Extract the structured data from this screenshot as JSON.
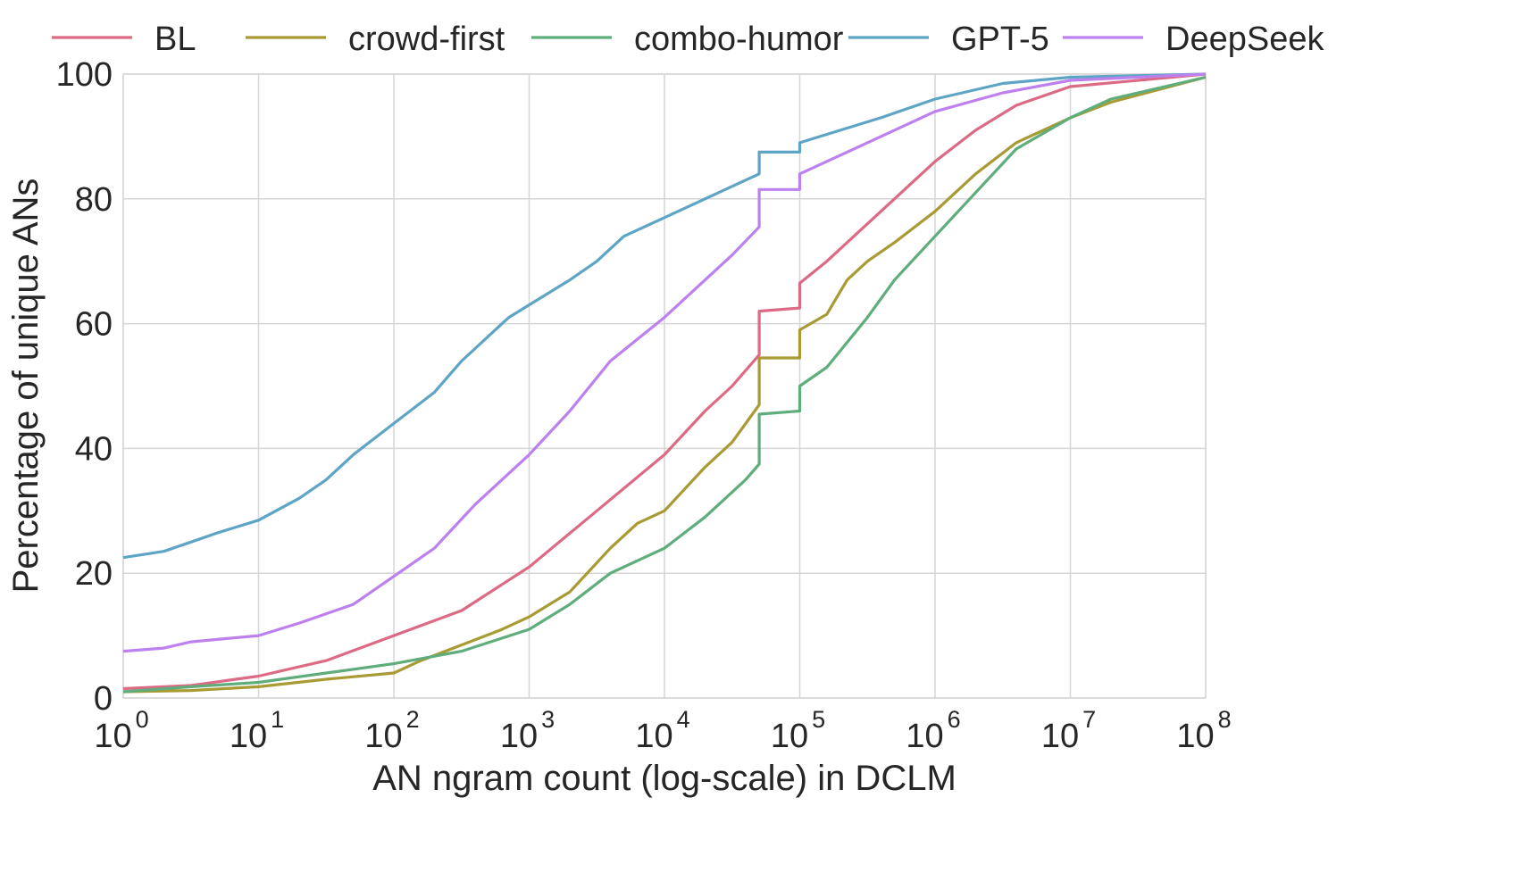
{
  "chart_data": {
    "type": "line",
    "title": "",
    "xlabel": "AN ngram count (log-scale) in DCLM",
    "ylabel": "Percentage of unique ANs",
    "xscale": "log",
    "xlim_log10": [
      0,
      8
    ],
    "ylim": [
      0,
      100
    ],
    "x_ticks": [
      {
        "base": "10",
        "exp": "0"
      },
      {
        "base": "10",
        "exp": "1"
      },
      {
        "base": "10",
        "exp": "2"
      },
      {
        "base": "10",
        "exp": "3"
      },
      {
        "base": "10",
        "exp": "4"
      },
      {
        "base": "10",
        "exp": "5"
      },
      {
        "base": "10",
        "exp": "6"
      },
      {
        "base": "10",
        "exp": "7"
      },
      {
        "base": "10",
        "exp": "8"
      }
    ],
    "y_ticks": [
      "0",
      "20",
      "40",
      "60",
      "80",
      "100"
    ],
    "grid": true,
    "legend_placement": "top, outside",
    "series": [
      {
        "name": "BL",
        "color": "#dd6a84",
        "points_log10x_y": [
          [
            0,
            1.5
          ],
          [
            0.5,
            2
          ],
          [
            1,
            3.5
          ],
          [
            1.5,
            6
          ],
          [
            2,
            10
          ],
          [
            2.5,
            14
          ],
          [
            3,
            21
          ],
          [
            3.5,
            30
          ],
          [
            4,
            39
          ],
          [
            4.3,
            46
          ],
          [
            4.5,
            50
          ],
          [
            4.7,
            55
          ],
          [
            4.7,
            62
          ],
          [
            5,
            62.5
          ],
          [
            5,
            66.5
          ],
          [
            5.2,
            70
          ],
          [
            5.4,
            74
          ],
          [
            5.6,
            78
          ],
          [
            5.8,
            82
          ],
          [
            6,
            86
          ],
          [
            6.3,
            91
          ],
          [
            6.6,
            95
          ],
          [
            7,
            98
          ],
          [
            7.5,
            99
          ],
          [
            8,
            100
          ]
        ]
      },
      {
        "name": "crowd-first",
        "color": "#a99b34",
        "points_log10x_y": [
          [
            0,
            1
          ],
          [
            0.5,
            1.2
          ],
          [
            1,
            1.8
          ],
          [
            1.5,
            3
          ],
          [
            2,
            4
          ],
          [
            2.2,
            6
          ],
          [
            2.5,
            8.5
          ],
          [
            2.8,
            11
          ],
          [
            3,
            13
          ],
          [
            3.3,
            17
          ],
          [
            3.6,
            24
          ],
          [
            3.8,
            28
          ],
          [
            4,
            30
          ],
          [
            4.3,
            37
          ],
          [
            4.5,
            41
          ],
          [
            4.7,
            47
          ],
          [
            4.7,
            54.5
          ],
          [
            5,
            54.5
          ],
          [
            5,
            59
          ],
          [
            5.2,
            61.5
          ],
          [
            5.35,
            67
          ],
          [
            5.5,
            70
          ],
          [
            5.7,
            73
          ],
          [
            6,
            78
          ],
          [
            6.3,
            84
          ],
          [
            6.6,
            89
          ],
          [
            7,
            93
          ],
          [
            7.3,
            95.5
          ],
          [
            8,
            99.5
          ]
        ]
      },
      {
        "name": "combo-humor",
        "color": "#5fad7b",
        "points_log10x_y": [
          [
            0,
            1
          ],
          [
            0.5,
            1.8
          ],
          [
            1,
            2.5
          ],
          [
            1.5,
            4
          ],
          [
            2,
            5.5
          ],
          [
            2.5,
            7.5
          ],
          [
            3,
            11
          ],
          [
            3.3,
            15
          ],
          [
            3.6,
            20
          ],
          [
            4,
            24
          ],
          [
            4.3,
            29
          ],
          [
            4.6,
            35
          ],
          [
            4.7,
            37.5
          ],
          [
            4.7,
            45.5
          ],
          [
            5,
            46
          ],
          [
            5,
            50
          ],
          [
            5.2,
            53
          ],
          [
            5.35,
            57
          ],
          [
            5.5,
            61
          ],
          [
            5.7,
            67
          ],
          [
            6,
            74
          ],
          [
            6.3,
            81
          ],
          [
            6.6,
            88
          ],
          [
            7,
            93
          ],
          [
            7.3,
            96
          ],
          [
            8,
            99.5
          ]
        ]
      },
      {
        "name": "GPT-5",
        "color": "#5ea4c4",
        "points_log10x_y": [
          [
            0,
            22.5
          ],
          [
            0.3,
            23.5
          ],
          [
            0.5,
            25
          ],
          [
            0.7,
            26.5
          ],
          [
            1,
            28.5
          ],
          [
            1.3,
            32
          ],
          [
            1.5,
            35
          ],
          [
            1.7,
            39
          ],
          [
            2,
            44
          ],
          [
            2.3,
            49
          ],
          [
            2.5,
            54
          ],
          [
            2.7,
            58
          ],
          [
            2.85,
            61
          ],
          [
            3,
            63
          ],
          [
            3.3,
            67
          ],
          [
            3.5,
            70
          ],
          [
            3.7,
            74
          ],
          [
            4,
            77
          ],
          [
            4.3,
            80
          ],
          [
            4.6,
            83
          ],
          [
            4.7,
            84
          ],
          [
            4.7,
            87.5
          ],
          [
            5,
            87.5
          ],
          [
            5,
            89
          ],
          [
            5.3,
            91
          ],
          [
            5.6,
            93
          ],
          [
            6,
            96
          ],
          [
            6.5,
            98.5
          ],
          [
            7,
            99.5
          ],
          [
            8,
            100
          ]
        ]
      },
      {
        "name": "DeepSeek",
        "color": "#bd80ef",
        "points_log10x_y": [
          [
            0,
            7.5
          ],
          [
            0.3,
            8
          ],
          [
            0.5,
            9
          ],
          [
            1,
            10
          ],
          [
            1.3,
            12
          ],
          [
            1.7,
            15
          ],
          [
            2,
            19.5
          ],
          [
            2.3,
            24
          ],
          [
            2.6,
            31
          ],
          [
            3,
            39
          ],
          [
            3.3,
            46
          ],
          [
            3.6,
            54
          ],
          [
            4,
            61
          ],
          [
            4.3,
            67
          ],
          [
            4.5,
            71
          ],
          [
            4.7,
            75.5
          ],
          [
            4.7,
            81.5
          ],
          [
            5,
            81.5
          ],
          [
            5,
            84
          ],
          [
            5.3,
            87
          ],
          [
            5.6,
            90
          ],
          [
            6,
            94
          ],
          [
            6.5,
            97
          ],
          [
            7,
            99
          ],
          [
            8,
            100
          ]
        ]
      }
    ]
  }
}
